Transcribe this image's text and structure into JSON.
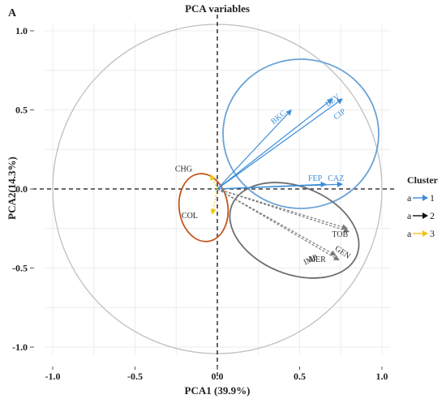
{
  "panel_label": "A",
  "chart_data": {
    "type": "scatter",
    "title": "PCA variables",
    "xlabel": "PCA1 (39.9%)",
    "ylabel": "PCA2(14.3%)",
    "xlim": [
      -1.05,
      1.05
    ],
    "ylim": [
      -1.05,
      1.05
    ],
    "x_ticks": [
      "-1.0",
      "-0.5",
      "0.0",
      "0.5",
      "1.0"
    ],
    "y_ticks": [
      "-1.0",
      "-0.5",
      "0.0",
      "0.5",
      "1.0"
    ],
    "grid": true,
    "legend_position": "right",
    "legend_title": "Cluster",
    "legend": [
      {
        "key": "a",
        "label": "1",
        "color": "#3c8dd8"
      },
      {
        "key": "a",
        "label": "2",
        "color": "#111111"
      },
      {
        "key": "a",
        "label": "3",
        "color": "#f2c40f"
      }
    ],
    "series": [
      {
        "name": "1",
        "color": "#3c8dd8",
        "points": [
          {
            "label": "BKC",
            "x": 0.45,
            "y": 0.5
          },
          {
            "label": "LEV",
            "x": 0.7,
            "y": 0.57
          },
          {
            "label": "CIP",
            "x": 0.76,
            "y": 0.57
          },
          {
            "label": "FEP",
            "x": 0.66,
            "y": 0.03
          },
          {
            "label": "CAZ",
            "x": 0.76,
            "y": 0.03
          }
        ]
      },
      {
        "name": "2",
        "color": "#7a7a7a",
        "points": [
          {
            "label": "TOB",
            "x": 0.79,
            "y": -0.25
          },
          {
            "label": "GEN",
            "x": 0.8,
            "y": -0.27
          },
          {
            "label": "MER",
            "x": 0.72,
            "y": -0.42
          },
          {
            "label": "IMP",
            "x": 0.74,
            "y": -0.45
          }
        ]
      },
      {
        "name": "3",
        "color": "#f2c40f",
        "points": [
          {
            "label": "CHG",
            "x": -0.04,
            "y": 0.09
          },
          {
            "label": "COL",
            "x": -0.03,
            "y": -0.16
          }
        ]
      }
    ],
    "ellipse_colors": {
      "1": "#6aa3d8",
      "2": "#6e6e6e",
      "3": "#c2561b"
    },
    "circle_color": "#bfbfbf"
  }
}
